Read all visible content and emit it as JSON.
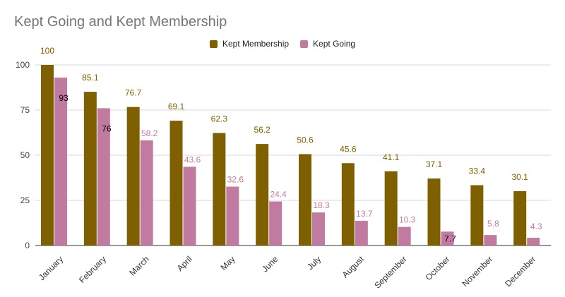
{
  "chart_data": {
    "type": "bar",
    "title": "Kept Going and Kept Membership",
    "xlabel": "",
    "ylabel": "",
    "ylim": [
      0,
      100
    ],
    "yticks": [
      0,
      25,
      50,
      75,
      100
    ],
    "grid": true,
    "legend_position": "top",
    "categories": [
      "January",
      "February",
      "March",
      "April",
      "May",
      "June",
      "July",
      "August",
      "September",
      "October",
      "November",
      "December"
    ],
    "series": [
      {
        "name": "Kept Membership",
        "color": "#7f6000",
        "values": [
          100,
          85.1,
          76.7,
          69.1,
          62.3,
          56.2,
          50.6,
          45.6,
          41.1,
          37.1,
          33.4,
          30.1
        ],
        "labels": [
          "100",
          "85.1",
          "76.7",
          "69.1",
          "62.3",
          "56.2",
          "50.6",
          "45.6",
          "41.1",
          "37.1",
          "33.4",
          "30.1"
        ]
      },
      {
        "name": "Kept Going",
        "color": "#c27ba0",
        "values": [
          93,
          76,
          58.2,
          43.6,
          32.6,
          24.4,
          18.3,
          13.7,
          10.3,
          7.7,
          5.8,
          4.3
        ],
        "labels": [
          "93",
          "76",
          "58.2",
          "43.6",
          "32.6",
          "24.4",
          "18.3",
          "13.7",
          "10.3",
          "7.7",
          "5.8",
          "4.3"
        ]
      }
    ]
  }
}
